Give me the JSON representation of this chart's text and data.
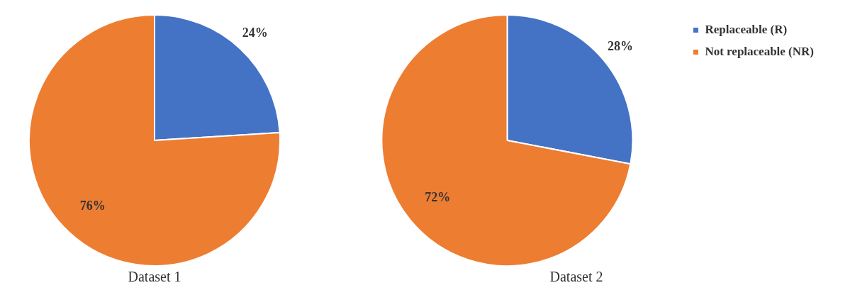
{
  "chart_data": [
    {
      "type": "pie",
      "title": "Dataset 1",
      "categories": [
        null,
        null
      ],
      "values": [
        24,
        76
      ],
      "colors": [
        "#4472c4",
        "#ed7d31"
      ],
      "value_labels": [
        "24%",
        "76%"
      ],
      "legend": false
    },
    {
      "type": "pie",
      "title": "Dataset 2",
      "categories": [
        "Replaceable (R)",
        "Not replaceable (NR)"
      ],
      "values": [
        28,
        72
      ],
      "colors": [
        "#4472c4",
        "#ed7d31"
      ],
      "value_labels": [
        "28%",
        "72%"
      ],
      "legend": "right"
    }
  ]
}
